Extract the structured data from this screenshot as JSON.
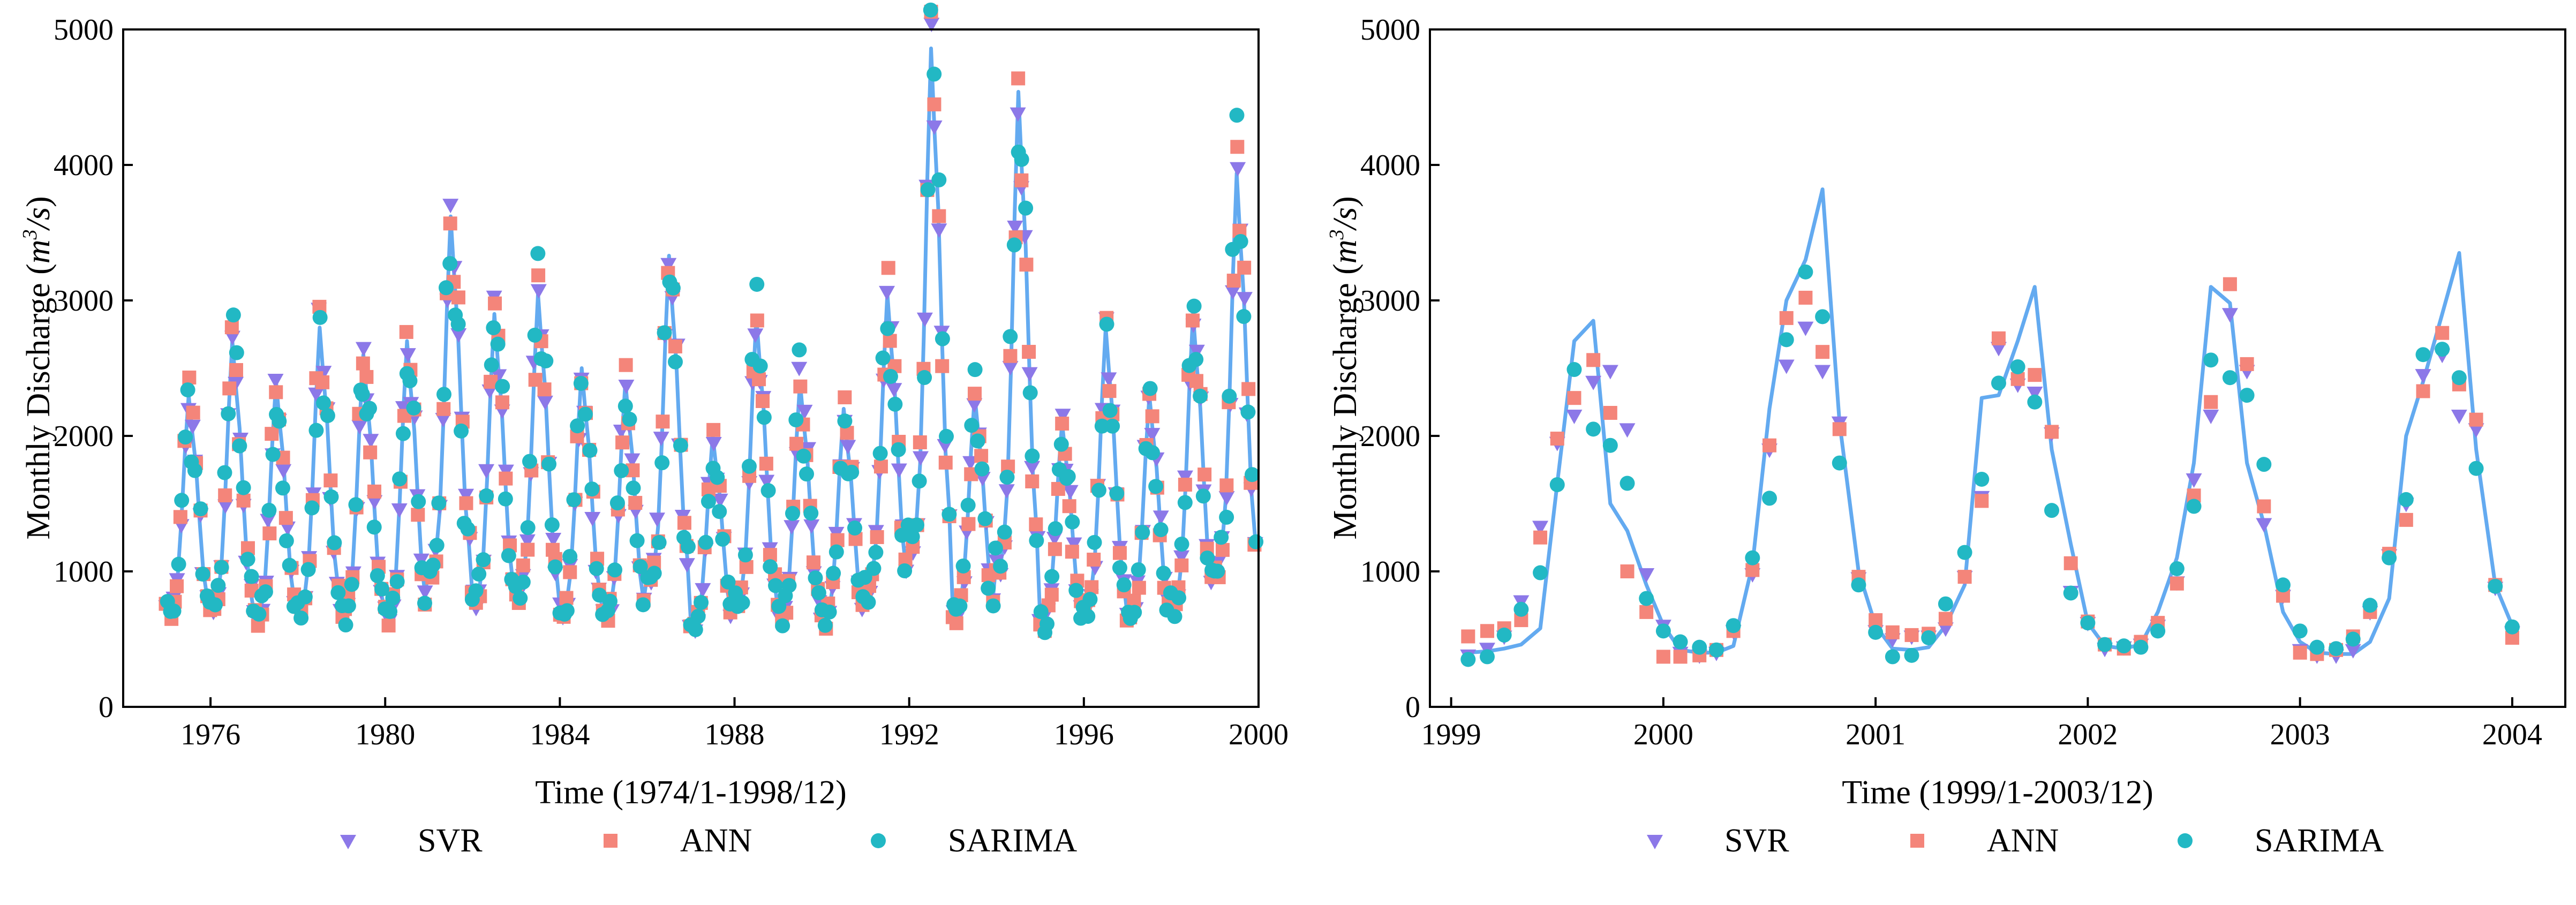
{
  "colors": {
    "svr": "#8c78e8",
    "ann": "#f4857a",
    "sarima": "#22b8c4",
    "observed_line": "#63aaf0",
    "axis": "#000000"
  },
  "legend": {
    "placement": "bottom-center",
    "entries": [
      {
        "label": "SVR",
        "marker": "triangle-down",
        "color": "#8c78e8"
      },
      {
        "label": "ANN",
        "marker": "square",
        "color": "#f4857a"
      },
      {
        "label": "SARIMA",
        "marker": "circle",
        "color": "#22b8c4"
      }
    ]
  },
  "chart_data": [
    {
      "type": "line",
      "title": "",
      "xlabel": "Time (1974/1-1998/12)",
      "ylabel_prefix": "Monthly Discharge (",
      "ylabel_unit_base": "m",
      "ylabel_unit_sup": "3",
      "ylabel_unit_rest": "/s",
      "ylabel_suffix": ")",
      "xlim": [
        1974,
        2000
      ],
      "ylim": [
        0,
        5000
      ],
      "xticks": [
        "1976",
        "1980",
        "1984",
        "1988",
        "1992",
        "1996",
        "2000"
      ],
      "xtick_values": [
        1976,
        1980,
        1984,
        1988,
        1992,
        1996,
        2000
      ],
      "yticks": [
        "0",
        "1000",
        "2000",
        "3000",
        "4000",
        "5000"
      ],
      "ytick_values": [
        0,
        1000,
        2000,
        3000,
        4000,
        5000
      ],
      "grid": false,
      "month_start": 1975,
      "annual_peaks": [
        2300,
        2700,
        2400,
        2800,
        2600,
        2700,
        3620,
        2900,
        3050,
        2500,
        2400,
        3330,
        2000,
        2880,
        2400,
        2200,
        3050,
        4860,
        2300,
        4540,
        2100,
        2800,
        2300,
        2900,
        3940
      ],
      "annual_low": [
        450,
        400,
        380,
        420,
        380,
        350,
        600,
        450,
        500,
        420,
        380,
        550,
        380,
        430,
        400,
        380,
        550,
        600,
        420,
        500,
        380,
        420,
        380,
        420,
        600
      ],
      "series": [
        {
          "name": "SVR",
          "marker": "triangle-down",
          "noise": 0.05,
          "phase": 0.1
        },
        {
          "name": "ANN",
          "marker": "square",
          "noise": 0.09,
          "phase": 0.4
        },
        {
          "name": "SARIMA",
          "marker": "circle",
          "noise": 0.12,
          "phase": 0.7
        }
      ]
    },
    {
      "type": "line",
      "title": "",
      "xlabel": "Time (1999/1-2003/12)",
      "ylabel_prefix": "Monthly Discharge (",
      "ylabel_unit_base": "m",
      "ylabel_unit_sup": "3",
      "ylabel_unit_rest": "/s",
      "ylabel_suffix": ")",
      "xlim": [
        1998.9,
        2004.25
      ],
      "ylim": [
        0,
        5000
      ],
      "xticks": [
        "1999",
        "2000",
        "2001",
        "2002",
        "2003",
        "2004"
      ],
      "xtick_values": [
        1999,
        2000,
        2001,
        2002,
        2003,
        2004
      ],
      "yticks": [
        "0",
        "1000",
        "2000",
        "3000",
        "4000",
        "5000"
      ],
      "ytick_values": [
        0,
        1000,
        2000,
        3000,
        4000,
        5000
      ],
      "grid": false,
      "observed": [
        [
          1999.08,
          400
        ],
        [
          1999.17,
          410
        ],
        [
          1999.25,
          430
        ],
        [
          1999.33,
          460
        ],
        [
          1999.42,
          580
        ],
        [
          1999.5,
          1650
        ],
        [
          1999.58,
          2700
        ],
        [
          1999.67,
          2850
        ],
        [
          1999.75,
          1500
        ],
        [
          1999.83,
          1300
        ],
        [
          1999.92,
          900
        ],
        [
          2000.0,
          600
        ],
        [
          2000.08,
          420
        ],
        [
          2000.17,
          400
        ],
        [
          2000.25,
          400
        ],
        [
          2000.33,
          450
        ],
        [
          2000.42,
          1050
        ],
        [
          2000.5,
          2200
        ],
        [
          2000.58,
          3000
        ],
        [
          2000.67,
          3300
        ],
        [
          2000.75,
          3820
        ],
        [
          2000.83,
          2100
        ],
        [
          2000.92,
          1000
        ],
        [
          2001.0,
          600
        ],
        [
          2001.08,
          430
        ],
        [
          2001.17,
          420
        ],
        [
          2001.25,
          440
        ],
        [
          2001.33,
          600
        ],
        [
          2001.42,
          900
        ],
        [
          2001.5,
          2280
        ],
        [
          2001.58,
          2300
        ],
        [
          2001.67,
          2700
        ],
        [
          2001.75,
          3100
        ],
        [
          2001.83,
          1900
        ],
        [
          2001.92,
          1200
        ],
        [
          2002.0,
          620
        ],
        [
          2002.08,
          450
        ],
        [
          2002.17,
          430
        ],
        [
          2002.25,
          460
        ],
        [
          2002.33,
          700
        ],
        [
          2002.42,
          1100
        ],
        [
          2002.5,
          1800
        ],
        [
          2002.58,
          3100
        ],
        [
          2002.67,
          2980
        ],
        [
          2002.75,
          1800
        ],
        [
          2002.83,
          1350
        ],
        [
          2002.92,
          700
        ],
        [
          2003.0,
          480
        ],
        [
          2003.08,
          400
        ],
        [
          2003.17,
          390
        ],
        [
          2003.25,
          390
        ],
        [
          2003.33,
          480
        ],
        [
          2003.42,
          800
        ],
        [
          2003.5,
          2000
        ],
        [
          2003.58,
          2400
        ],
        [
          2003.67,
          2900
        ],
        [
          2003.75,
          3350
        ],
        [
          2003.83,
          1900
        ],
        [
          2003.92,
          900
        ],
        [
          2004.0,
          600
        ]
      ],
      "series": [
        {
          "name": "SVR",
          "marker": "triangle-down",
          "points": [
            [
              1999.08,
              380
            ],
            [
              1999.17,
              430
            ],
            [
              1999.25,
              520
            ],
            [
              1999.33,
              780
            ],
            [
              1999.42,
              1330
            ],
            [
              1999.5,
              1950
            ],
            [
              1999.58,
              2150
            ],
            [
              1999.67,
              2400
            ],
            [
              1999.75,
              2480
            ],
            [
              1999.83,
              2050
            ],
            [
              1999.92,
              980
            ],
            [
              2000.0,
              600
            ],
            [
              2000.08,
              400
            ],
            [
              2000.17,
              380
            ],
            [
              2000.25,
              400
            ],
            [
              2000.33,
              560
            ],
            [
              2000.42,
              980
            ],
            [
              2000.5,
              1900
            ],
            [
              2000.58,
              2520
            ],
            [
              2000.67,
              2800
            ],
            [
              2000.75,
              2480
            ],
            [
              2000.83,
              2100
            ],
            [
              2000.92,
              950
            ],
            [
              2001.0,
              560
            ],
            [
              2001.08,
              500
            ],
            [
              2001.17,
              520
            ],
            [
              2001.25,
              520
            ],
            [
              2001.33,
              580
            ],
            [
              2001.42,
              960
            ],
            [
              2001.5,
              1550
            ],
            [
              2001.58,
              2650
            ],
            [
              2001.67,
              2380
            ],
            [
              2001.75,
              2320
            ],
            [
              2001.83,
              2020
            ],
            [
              2001.92,
              850
            ],
            [
              2002.0,
              620
            ],
            [
              2002.08,
              430
            ],
            [
              2002.17,
              440
            ],
            [
              2002.25,
              460
            ],
            [
              2002.33,
              600
            ],
            [
              2002.42,
              920
            ],
            [
              2002.5,
              1680
            ],
            [
              2002.58,
              2150
            ],
            [
              2002.67,
              2900
            ],
            [
              2002.75,
              2480
            ],
            [
              2002.83,
              1350
            ],
            [
              2002.92,
              820
            ],
            [
              2003.0,
              420
            ],
            [
              2003.08,
              380
            ],
            [
              2003.17,
              380
            ],
            [
              2003.25,
              420
            ],
            [
              2003.33,
              700
            ],
            [
              2003.42,
              1120
            ],
            [
              2003.5,
              1500
            ],
            [
              2003.58,
              2450
            ],
            [
              2003.67,
              2600
            ],
            [
              2003.75,
              2150
            ],
            [
              2003.83,
              2050
            ],
            [
              2003.92,
              880
            ],
            [
              2004.0,
              550
            ]
          ]
        },
        {
          "name": "ANN",
          "marker": "square",
          "points": [
            [
              1999.08,
              520
            ],
            [
              1999.17,
              560
            ],
            [
              1999.25,
              580
            ],
            [
              1999.33,
              640
            ],
            [
              1999.42,
              1250
            ],
            [
              1999.5,
              1980
            ],
            [
              1999.58,
              2280
            ],
            [
              1999.67,
              2560
            ],
            [
              1999.75,
              2170
            ],
            [
              1999.83,
              1000
            ],
            [
              1999.92,
              700
            ],
            [
              2000.0,
              370
            ],
            [
              2000.08,
              370
            ],
            [
              2000.17,
              380
            ],
            [
              2000.25,
              420
            ],
            [
              2000.33,
              560
            ],
            [
              2000.42,
              1010
            ],
            [
              2000.5,
              1930
            ],
            [
              2000.58,
              2870
            ],
            [
              2000.67,
              3020
            ],
            [
              2000.75,
              2620
            ],
            [
              2000.83,
              2050
            ],
            [
              2000.92,
              960
            ],
            [
              2001.0,
              640
            ],
            [
              2001.08,
              550
            ],
            [
              2001.17,
              530
            ],
            [
              2001.25,
              540
            ],
            [
              2001.33,
              650
            ],
            [
              2001.42,
              960
            ],
            [
              2001.5,
              1520
            ],
            [
              2001.58,
              2720
            ],
            [
              2001.67,
              2420
            ],
            [
              2001.75,
              2450
            ],
            [
              2001.83,
              2030
            ],
            [
              2001.92,
              1060
            ],
            [
              2002.0,
              630
            ],
            [
              2002.08,
              460
            ],
            [
              2002.17,
              430
            ],
            [
              2002.25,
              480
            ],
            [
              2002.33,
              620
            ],
            [
              2002.42,
              910
            ],
            [
              2002.5,
              1560
            ],
            [
              2002.58,
              2250
            ],
            [
              2002.67,
              3120
            ],
            [
              2002.75,
              2530
            ],
            [
              2002.83,
              1480
            ],
            [
              2002.92,
              820
            ],
            [
              2003.0,
              400
            ],
            [
              2003.08,
              390
            ],
            [
              2003.17,
              420
            ],
            [
              2003.25,
              520
            ],
            [
              2003.33,
              700
            ],
            [
              2003.42,
              1130
            ],
            [
              2003.5,
              1380
            ],
            [
              2003.58,
              2330
            ],
            [
              2003.67,
              2760
            ],
            [
              2003.75,
              2380
            ],
            [
              2003.83,
              2120
            ],
            [
              2003.92,
              900
            ],
            [
              2004.0,
              510
            ]
          ]
        },
        {
          "name": "SARIMA",
          "marker": "circle",
          "points": [
            [
              1999.08,
              350
            ],
            [
              1999.17,
              370
            ],
            [
              1999.25,
              530
            ],
            [
              1999.33,
              720
            ],
            [
              1999.42,
              990
            ],
            [
              1999.5,
              1640
            ],
            [
              1999.58,
              2490
            ],
            [
              1999.67,
              2050
            ],
            [
              1999.75,
              1930
            ],
            [
              1999.83,
              1650
            ],
            [
              1999.92,
              800
            ],
            [
              2000.0,
              560
            ],
            [
              2000.08,
              480
            ],
            [
              2000.17,
              440
            ],
            [
              2000.25,
              420
            ],
            [
              2000.33,
              600
            ],
            [
              2000.42,
              1100
            ],
            [
              2000.5,
              1540
            ],
            [
              2000.58,
              2710
            ],
            [
              2000.67,
              3210
            ],
            [
              2000.75,
              2880
            ],
            [
              2000.83,
              1800
            ],
            [
              2000.92,
              900
            ],
            [
              2001.0,
              550
            ],
            [
              2001.08,
              370
            ],
            [
              2001.17,
              380
            ],
            [
              2001.25,
              510
            ],
            [
              2001.33,
              760
            ],
            [
              2001.42,
              1140
            ],
            [
              2001.5,
              1680
            ],
            [
              2001.58,
              2390
            ],
            [
              2001.67,
              2510
            ],
            [
              2001.75,
              2250
            ],
            [
              2001.83,
              1450
            ],
            [
              2001.92,
              840
            ],
            [
              2002.0,
              620
            ],
            [
              2002.08,
              460
            ],
            [
              2002.17,
              450
            ],
            [
              2002.25,
              440
            ],
            [
              2002.33,
              560
            ],
            [
              2002.42,
              1020
            ],
            [
              2002.5,
              1480
            ],
            [
              2002.58,
              2560
            ],
            [
              2002.67,
              2430
            ],
            [
              2002.75,
              2300
            ],
            [
              2002.83,
              1790
            ],
            [
              2002.92,
              900
            ],
            [
              2003.0,
              560
            ],
            [
              2003.08,
              440
            ],
            [
              2003.17,
              430
            ],
            [
              2003.25,
              500
            ],
            [
              2003.33,
              750
            ],
            [
              2003.42,
              1100
            ],
            [
              2003.5,
              1530
            ],
            [
              2003.58,
              2600
            ],
            [
              2003.67,
              2640
            ],
            [
              2003.75,
              2430
            ],
            [
              2003.83,
              1760
            ],
            [
              2003.92,
              890
            ],
            [
              2004.0,
              590
            ]
          ]
        }
      ]
    }
  ]
}
